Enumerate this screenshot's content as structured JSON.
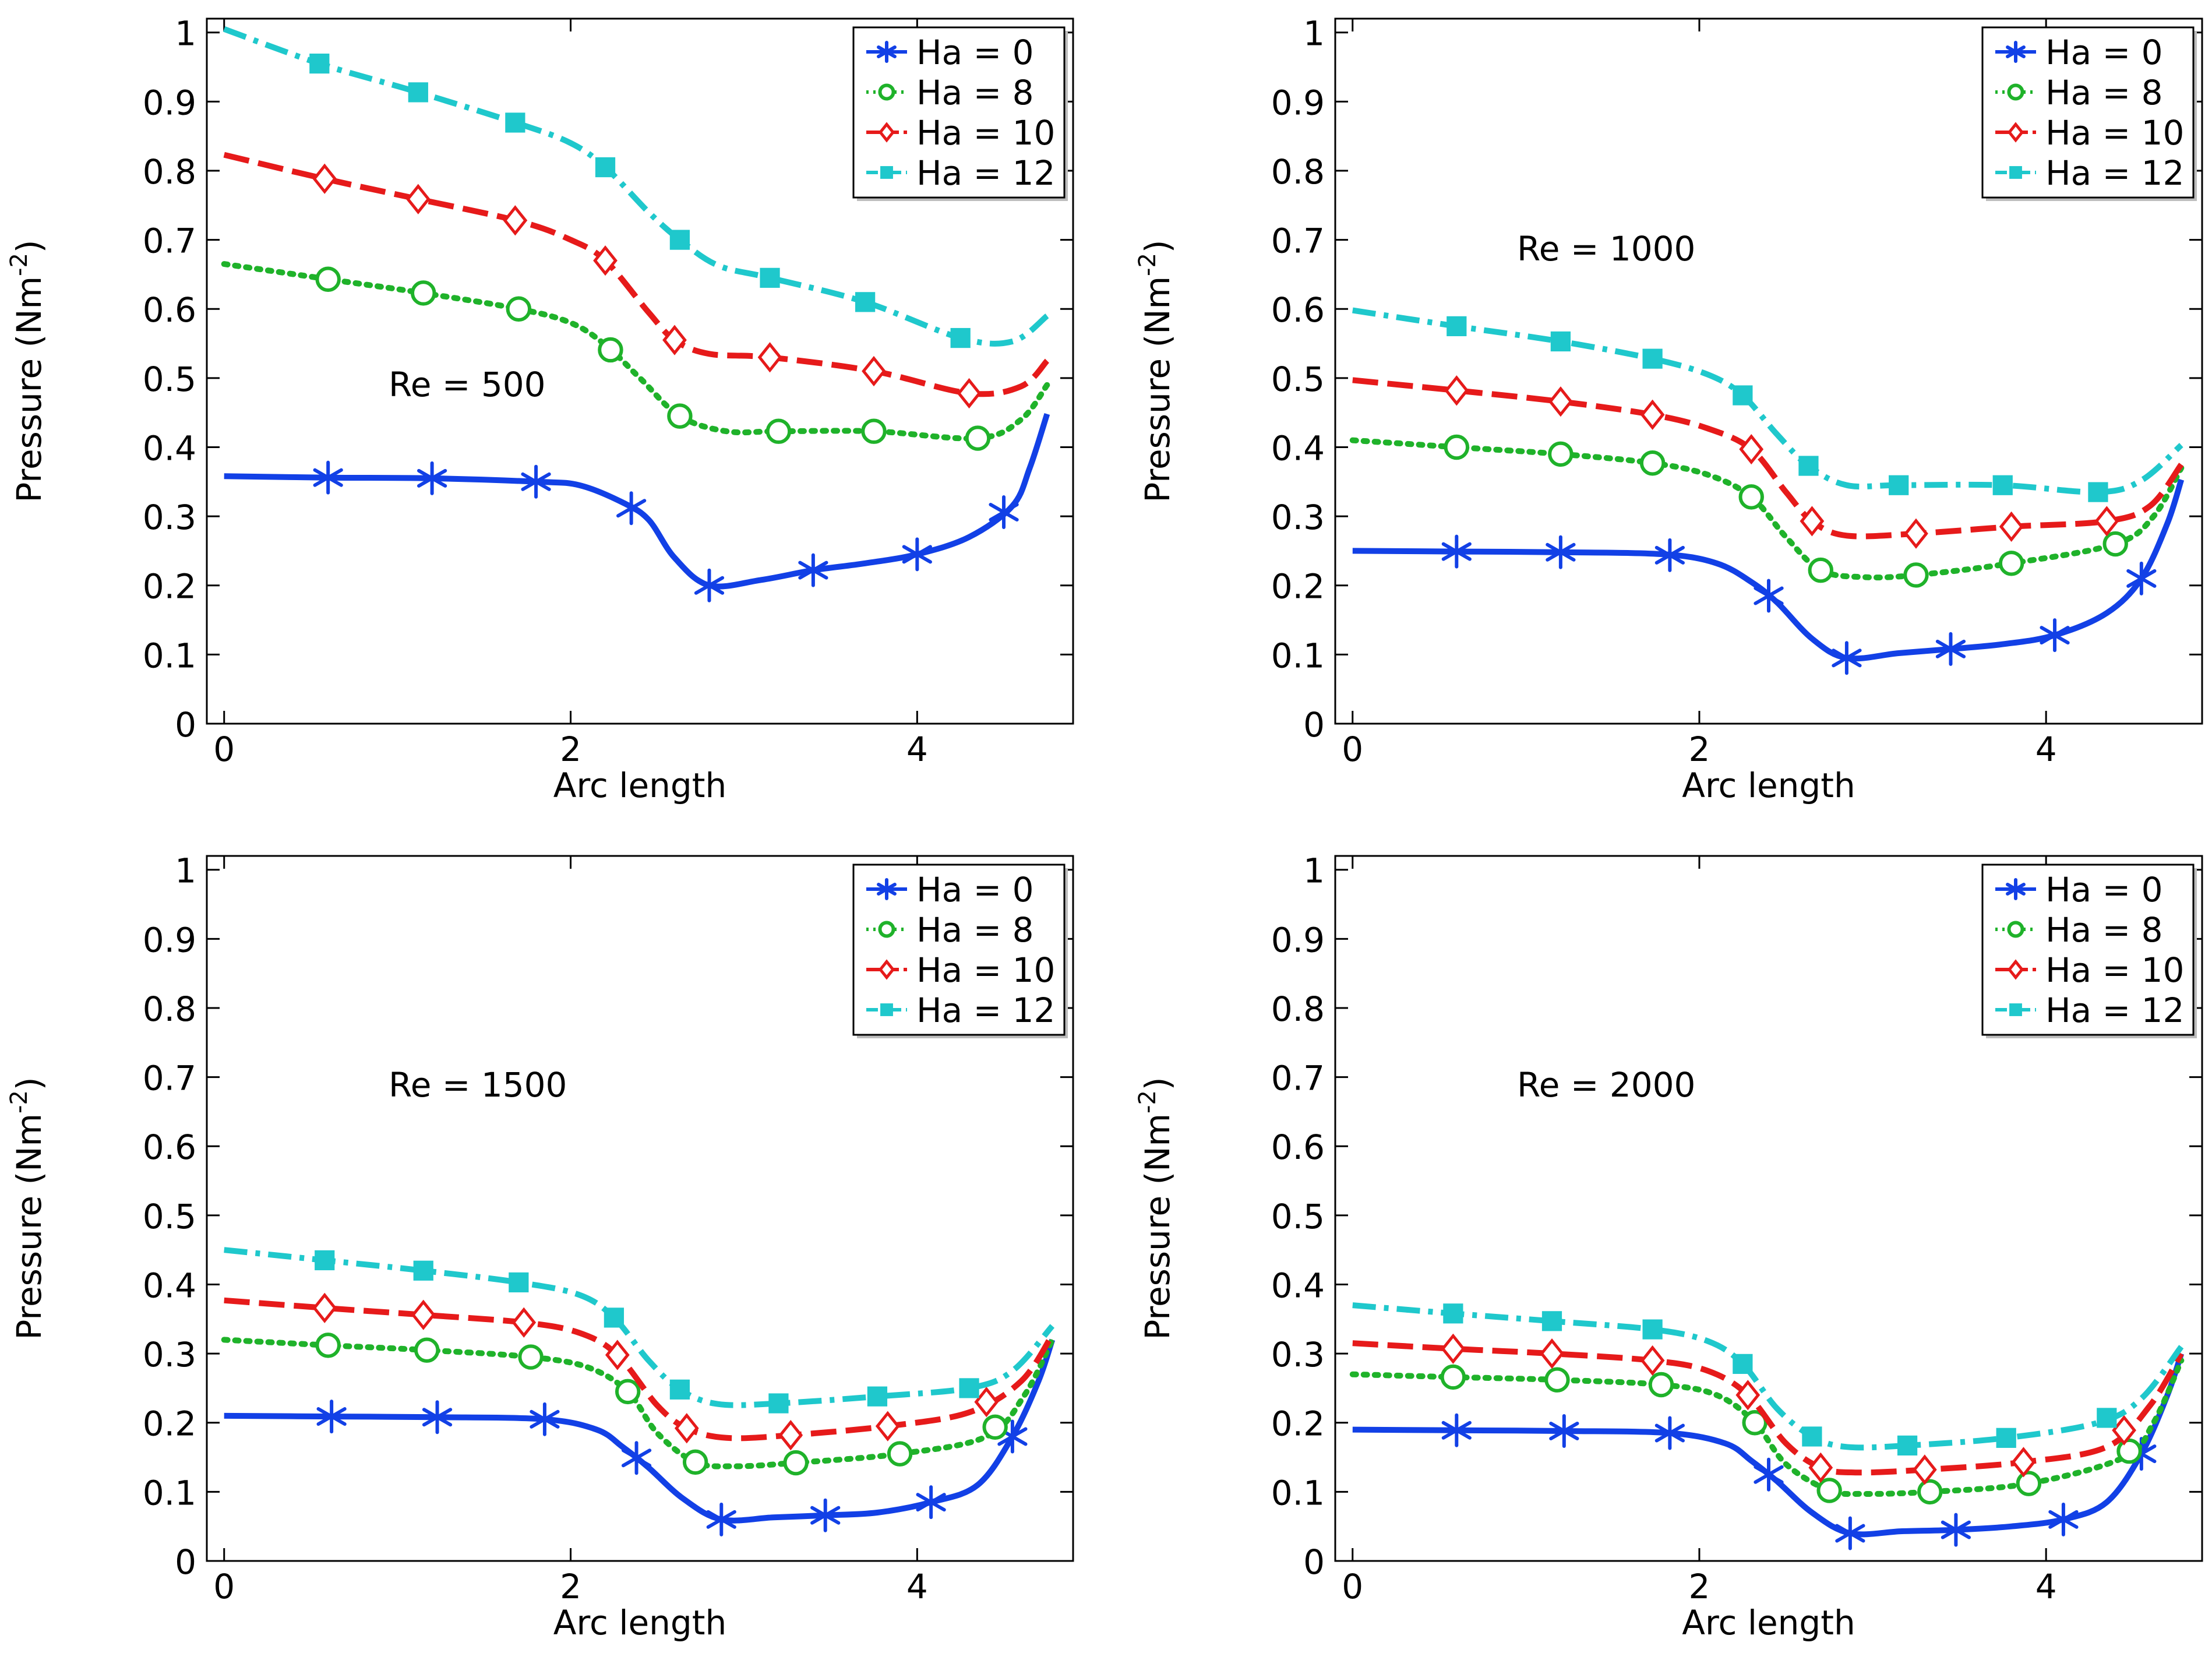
{
  "colors": {
    "Ha = 0": "#1240e6",
    "Ha = 8": "#1fb22a",
    "Ha = 10": "#e61a1a",
    "Ha = 12": "#1fc8cc"
  },
  "chart_data": [
    {
      "type": "line",
      "title": "",
      "annotation": "Re = 500",
      "xlabel": "Arc length",
      "ylabel": "Pressure (Nm",
      "ylabel_sup": "-2",
      "ylabel_end": ")",
      "xlim": [
        -0.1,
        4.9
      ],
      "ylim": [
        0,
        1.02
      ],
      "xticks": [
        0,
        2,
        4
      ],
      "xtick_labels": [
        "0",
        "2",
        "4"
      ],
      "yticks": [
        0,
        0.1,
        0.2,
        0.3,
        0.4,
        0.5,
        0.6,
        0.7,
        0.8,
        0.9,
        1
      ],
      "ytick_labels": [
        "0",
        "0.1",
        "0.2",
        "0.3",
        "0.4",
        "0.5",
        "0.6",
        "0.7",
        "0.8",
        "0.9",
        "1"
      ],
      "legend_position": "top-right",
      "series": [
        {
          "name": "Ha = 0",
          "marker": "asterisk",
          "dash": "solid",
          "x": [
            0,
            0.6,
            1.2,
            1.8,
            2.05,
            2.3,
            2.45,
            2.6,
            2.8,
            3.1,
            3.4,
            3.7,
            4.0,
            4.3,
            4.55,
            4.65,
            4.75
          ],
          "y": [
            0.358,
            0.356,
            0.355,
            0.35,
            0.345,
            0.32,
            0.295,
            0.24,
            0.2,
            0.208,
            0.222,
            0.232,
            0.245,
            0.27,
            0.315,
            0.37,
            0.448
          ],
          "marker_x": [
            0.6,
            1.2,
            1.8,
            2.35,
            2.8,
            3.4,
            4.0,
            4.5
          ]
        },
        {
          "name": "Ha = 8",
          "marker": "circle",
          "dash": "dotted",
          "x": [
            0,
            0.6,
            1.15,
            1.7,
            2.0,
            2.2,
            2.4,
            2.63,
            2.9,
            3.2,
            3.75,
            4.35,
            4.6,
            4.75
          ],
          "y": [
            0.665,
            0.643,
            0.623,
            0.6,
            0.58,
            0.548,
            0.5,
            0.445,
            0.423,
            0.423,
            0.423,
            0.413,
            0.44,
            0.49
          ],
          "marker_x": [
            0.6,
            1.15,
            1.7,
            2.23,
            2.63,
            3.2,
            3.75,
            4.35
          ]
        },
        {
          "name": "Ha = 10",
          "marker": "diamond",
          "dash": "dashed",
          "x": [
            0,
            0.55,
            1.1,
            1.7,
            2.0,
            2.2,
            2.45,
            2.6,
            2.8,
            3.15,
            3.75,
            4.3,
            4.6,
            4.75
          ],
          "y": [
            0.823,
            0.79,
            0.76,
            0.727,
            0.7,
            0.67,
            0.595,
            0.555,
            0.535,
            0.53,
            0.51,
            0.478,
            0.488,
            0.525
          ],
          "marker_x": [
            0.58,
            1.12,
            1.68,
            2.2,
            2.6,
            3.15,
            3.75,
            4.3
          ]
        },
        {
          "name": "Ha = 12",
          "marker": "square",
          "dash": "dashdot",
          "x": [
            0,
            0.55,
            1.1,
            1.7,
            2.0,
            2.2,
            2.45,
            2.63,
            2.85,
            3.15,
            3.7,
            4.25,
            4.55,
            4.75
          ],
          "y": [
            1.005,
            0.955,
            0.915,
            0.868,
            0.84,
            0.805,
            0.74,
            0.7,
            0.663,
            0.645,
            0.61,
            0.558,
            0.553,
            0.59
          ],
          "marker_x": [
            0.55,
            1.12,
            1.68,
            2.2,
            2.63,
            3.15,
            3.7,
            4.25
          ]
        }
      ]
    },
    {
      "type": "line",
      "title": "",
      "annotation": "Re = 1000",
      "xlabel": "Arc length",
      "ylabel": "Pressure (Nm",
      "ylabel_sup": "-2",
      "ylabel_end": ")",
      "xlim": [
        -0.1,
        4.9
      ],
      "ylim": [
        0,
        1.02
      ],
      "xticks": [
        0,
        2,
        4
      ],
      "xtick_labels": [
        "0",
        "2",
        "4"
      ],
      "yticks": [
        0,
        0.1,
        0.2,
        0.3,
        0.4,
        0.5,
        0.6,
        0.7,
        0.8,
        0.9,
        1
      ],
      "ytick_labels": [
        "0",
        "0.1",
        "0.2",
        "0.3",
        "0.4",
        "0.5",
        "0.6",
        "0.7",
        "0.8",
        "0.9",
        "1"
      ],
      "legend_position": "top-right",
      "series": [
        {
          "name": "Ha = 0",
          "marker": "asterisk",
          "dash": "solid",
          "x": [
            0,
            0.6,
            1.2,
            1.8,
            2.1,
            2.3,
            2.45,
            2.65,
            2.85,
            3.15,
            3.45,
            3.75,
            4.05,
            4.35,
            4.55,
            4.7,
            4.78
          ],
          "y": [
            0.25,
            0.249,
            0.248,
            0.245,
            0.232,
            0.205,
            0.175,
            0.123,
            0.095,
            0.102,
            0.108,
            0.115,
            0.128,
            0.16,
            0.21,
            0.29,
            0.353
          ],
          "marker_x": [
            0.6,
            1.2,
            1.83,
            2.4,
            2.85,
            3.45,
            4.05,
            4.55
          ]
        },
        {
          "name": "Ha = 8",
          "marker": "circle",
          "dash": "dotted",
          "x": [
            0,
            0.6,
            1.2,
            1.73,
            2.05,
            2.3,
            2.5,
            2.7,
            2.95,
            3.25,
            3.8,
            4.4,
            4.62,
            4.78
          ],
          "y": [
            0.41,
            0.4,
            0.39,
            0.377,
            0.36,
            0.328,
            0.27,
            0.222,
            0.212,
            0.215,
            0.232,
            0.26,
            0.3,
            0.37
          ],
          "marker_x": [
            0.6,
            1.2,
            1.73,
            2.3,
            2.7,
            3.25,
            3.8,
            4.4
          ]
        },
        {
          "name": "Ha = 10",
          "marker": "diamond",
          "dash": "dashed",
          "x": [
            0,
            0.6,
            1.2,
            1.73,
            2.05,
            2.3,
            2.5,
            2.65,
            2.85,
            3.25,
            3.8,
            4.35,
            4.6,
            4.78
          ],
          "y": [
            0.497,
            0.482,
            0.466,
            0.447,
            0.427,
            0.397,
            0.335,
            0.293,
            0.272,
            0.275,
            0.285,
            0.293,
            0.315,
            0.375
          ],
          "marker_x": [
            0.6,
            1.2,
            1.73,
            2.3,
            2.65,
            3.25,
            3.8,
            4.35
          ]
        },
        {
          "name": "Ha = 12",
          "marker": "square",
          "dash": "dashdot",
          "x": [
            0,
            0.6,
            1.2,
            1.73,
            2.05,
            2.25,
            2.45,
            2.63,
            2.85,
            3.15,
            3.75,
            4.3,
            4.55,
            4.78
          ],
          "y": [
            0.598,
            0.575,
            0.553,
            0.528,
            0.505,
            0.475,
            0.418,
            0.373,
            0.345,
            0.345,
            0.345,
            0.335,
            0.352,
            0.403
          ],
          "marker_x": [
            0.6,
            1.2,
            1.73,
            2.25,
            2.63,
            3.15,
            3.75,
            4.3
          ]
        }
      ]
    },
    {
      "type": "line",
      "title": "",
      "annotation": "Re = 1500",
      "xlabel": "Arc length",
      "ylabel": "Pressure (Nm",
      "ylabel_sup": "-2",
      "ylabel_end": ")",
      "xlim": [
        -0.1,
        4.9
      ],
      "ylim": [
        0,
        1.02
      ],
      "xticks": [
        0,
        2,
        4
      ],
      "xtick_labels": [
        "0",
        "2",
        "4"
      ],
      "yticks": [
        0,
        0.1,
        0.2,
        0.3,
        0.4,
        0.5,
        0.6,
        0.7,
        0.8,
        0.9,
        1
      ],
      "ytick_labels": [
        "0",
        "0.1",
        "0.2",
        "0.3",
        "0.4",
        "0.5",
        "0.6",
        "0.7",
        "0.8",
        "0.9",
        "1"
      ],
      "legend_position": "top-right",
      "series": [
        {
          "name": "Ha = 0",
          "marker": "asterisk",
          "dash": "solid",
          "x": [
            0,
            0.62,
            1.23,
            1.85,
            2.15,
            2.3,
            2.45,
            2.65,
            2.87,
            3.17,
            3.47,
            3.77,
            4.08,
            4.35,
            4.55,
            4.7,
            4.78
          ],
          "y": [
            0.21,
            0.209,
            0.208,
            0.205,
            0.19,
            0.165,
            0.135,
            0.09,
            0.06,
            0.063,
            0.066,
            0.07,
            0.085,
            0.11,
            0.18,
            0.26,
            0.32
          ],
          "marker_x": [
            0.62,
            1.23,
            1.85,
            2.38,
            2.87,
            3.47,
            4.08,
            4.55
          ]
        },
        {
          "name": "Ha = 8",
          "marker": "circle",
          "dash": "dotted",
          "x": [
            0,
            0.6,
            1.17,
            1.77,
            2.1,
            2.33,
            2.5,
            2.72,
            2.95,
            3.3,
            3.9,
            4.4,
            4.62,
            4.78
          ],
          "y": [
            0.32,
            0.312,
            0.305,
            0.295,
            0.28,
            0.245,
            0.185,
            0.143,
            0.137,
            0.142,
            0.155,
            0.18,
            0.24,
            0.32
          ],
          "marker_x": [
            0.6,
            1.17,
            1.77,
            2.33,
            2.72,
            3.3,
            3.9,
            4.45
          ]
        },
        {
          "name": "Ha = 10",
          "marker": "diamond",
          "dash": "dashed",
          "x": [
            0,
            0.58,
            1.15,
            1.73,
            2.05,
            2.27,
            2.5,
            2.67,
            2.9,
            3.27,
            3.83,
            4.3,
            4.6,
            4.78
          ],
          "y": [
            0.377,
            0.366,
            0.356,
            0.345,
            0.33,
            0.298,
            0.225,
            0.192,
            0.178,
            0.182,
            0.195,
            0.215,
            0.26,
            0.327
          ],
          "marker_x": [
            0.58,
            1.15,
            1.73,
            2.27,
            2.67,
            3.27,
            3.83,
            4.4
          ]
        },
        {
          "name": "Ha = 12",
          "marker": "square",
          "dash": "dashdot",
          "x": [
            0,
            0.58,
            1.15,
            1.7,
            2.05,
            2.25,
            2.45,
            2.63,
            2.85,
            3.2,
            3.77,
            4.3,
            4.55,
            4.78
          ],
          "y": [
            0.45,
            0.435,
            0.42,
            0.403,
            0.385,
            0.352,
            0.29,
            0.248,
            0.227,
            0.228,
            0.238,
            0.25,
            0.275,
            0.34
          ],
          "marker_x": [
            0.58,
            1.15,
            1.7,
            2.25,
            2.63,
            3.2,
            3.77,
            4.3
          ]
        }
      ]
    },
    {
      "type": "line",
      "title": "",
      "annotation": "Re = 2000",
      "xlabel": "Arc length",
      "ylabel": "Pressure (Nm",
      "ylabel_sup": "-2",
      "ylabel_end": ")",
      "xlim": [
        -0.1,
        4.9
      ],
      "ylim": [
        0,
        1.02
      ],
      "xticks": [
        0,
        2,
        4
      ],
      "xtick_labels": [
        "0",
        "2",
        "4"
      ],
      "yticks": [
        0,
        0.1,
        0.2,
        0.3,
        0.4,
        0.5,
        0.6,
        0.7,
        0.8,
        0.9,
        1
      ],
      "ytick_labels": [
        "0",
        "0.1",
        "0.2",
        "0.3",
        "0.4",
        "0.5",
        "0.6",
        "0.7",
        "0.8",
        "0.9",
        "1"
      ],
      "legend_position": "top-right",
      "series": [
        {
          "name": "Ha = 0",
          "marker": "asterisk",
          "dash": "solid",
          "x": [
            0,
            0.6,
            1.22,
            1.83,
            2.15,
            2.3,
            2.45,
            2.65,
            2.87,
            3.17,
            3.48,
            3.8,
            4.1,
            4.35,
            4.55,
            4.7,
            4.78
          ],
          "y": [
            0.19,
            0.189,
            0.188,
            0.185,
            0.17,
            0.145,
            0.115,
            0.07,
            0.04,
            0.043,
            0.045,
            0.05,
            0.06,
            0.085,
            0.155,
            0.24,
            0.3
          ],
          "marker_x": [
            0.6,
            1.22,
            1.83,
            2.4,
            2.87,
            3.48,
            4.1,
            4.55
          ]
        },
        {
          "name": "Ha = 8",
          "marker": "circle",
          "dash": "dotted",
          "x": [
            0,
            0.58,
            1.18,
            1.78,
            2.1,
            2.32,
            2.5,
            2.75,
            2.95,
            3.33,
            3.9,
            4.45,
            4.62,
            4.78
          ],
          "y": [
            0.27,
            0.266,
            0.262,
            0.255,
            0.24,
            0.2,
            0.14,
            0.102,
            0.097,
            0.1,
            0.112,
            0.15,
            0.2,
            0.29
          ],
          "marker_x": [
            0.58,
            1.18,
            1.78,
            2.32,
            2.75,
            3.33,
            3.9,
            4.48
          ]
        },
        {
          "name": "Ha = 10",
          "marker": "diamond",
          "dash": "dashed",
          "x": [
            0,
            0.58,
            1.15,
            1.73,
            2.05,
            2.28,
            2.5,
            2.7,
            2.9,
            3.3,
            3.87,
            4.35,
            4.6,
            4.78
          ],
          "y": [
            0.315,
            0.307,
            0.3,
            0.29,
            0.275,
            0.24,
            0.17,
            0.135,
            0.128,
            0.132,
            0.143,
            0.165,
            0.225,
            0.3
          ],
          "marker_x": [
            0.58,
            1.15,
            1.73,
            2.28,
            2.7,
            3.3,
            3.87,
            4.45
          ]
        },
        {
          "name": "Ha = 12",
          "marker": "square",
          "dash": "dashdot",
          "x": [
            0,
            0.58,
            1.15,
            1.73,
            2.05,
            2.25,
            2.45,
            2.65,
            2.85,
            3.2,
            3.77,
            4.3,
            4.55,
            4.78
          ],
          "y": [
            0.37,
            0.358,
            0.347,
            0.335,
            0.318,
            0.285,
            0.22,
            0.18,
            0.165,
            0.167,
            0.178,
            0.2,
            0.235,
            0.31
          ],
          "marker_x": [
            0.58,
            1.15,
            1.73,
            2.25,
            2.65,
            3.2,
            3.77,
            4.35
          ]
        }
      ]
    }
  ]
}
